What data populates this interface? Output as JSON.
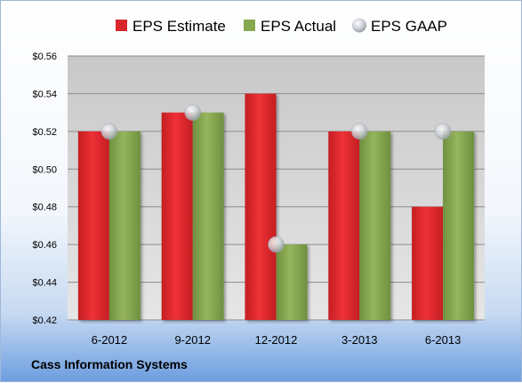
{
  "company": "Cass Information Systems",
  "chart_data": {
    "type": "bar",
    "categories": [
      "6-2012",
      "9-2012",
      "12-2012",
      "3-2013",
      "6-2013"
    ],
    "series": [
      {
        "name": "EPS Estimate",
        "values": [
          0.52,
          0.53,
          0.54,
          0.52,
          0.48
        ],
        "color": "#d9262b"
      },
      {
        "name": "EPS Actual",
        "values": [
          0.52,
          0.53,
          0.46,
          0.52,
          0.52
        ],
        "color": "#86a84e"
      }
    ],
    "markers": {
      "name": "EPS GAAP",
      "values": [
        0.52,
        0.53,
        0.46,
        0.52,
        0.52
      ],
      "color": "#c9cdd3"
    },
    "yticks": [
      "$0.42",
      "$0.44",
      "$0.46",
      "$0.48",
      "$0.50",
      "$0.52",
      "$0.54",
      "$0.56"
    ],
    "ylim": [
      0.42,
      0.56
    ],
    "grid": true,
    "legend_position": "top"
  }
}
